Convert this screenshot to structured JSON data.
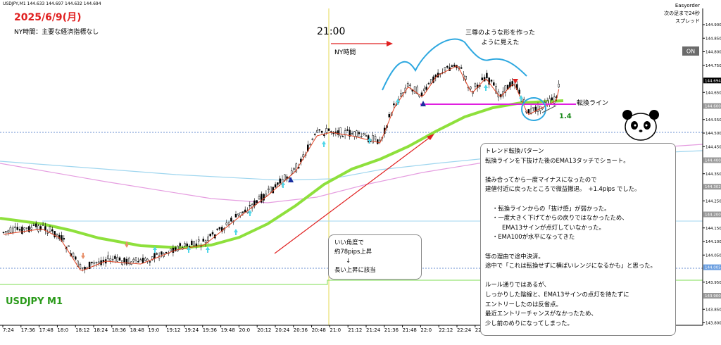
{
  "window_title": "USDJPY,M1  144.633 144.697 144.632 144.694",
  "header": {
    "date": "2025/6/9(月)",
    "note": "NY時間：主要な経済指標なし"
  },
  "time_marker": "21:00",
  "ny_label": "NY時間",
  "pattern_note": [
    "三尊のような形を作った",
    "ように見えた"
  ],
  "line_label": "転換ライン",
  "pips_label": "1.4",
  "top_right": [
    "Easyorder",
    "次の足まで24秒",
    "スプレッド"
  ],
  "on_button": "ON",
  "price_axis": {
    "labels": [
      "144.900",
      "144.850",
      "144.800",
      "144.750",
      "144.650",
      "144.550",
      "144.500",
      "144.450",
      "144.350",
      "144.250",
      "144.150",
      "144.100",
      "144.050",
      "143.950",
      "143.850",
      "143.800"
    ],
    "highlighted": [
      "144.694",
      "144.600",
      "144.400",
      "144.302",
      "144.200",
      "144.005",
      "143.900"
    ]
  },
  "time_axis": [
    "7:24",
    "17:36",
    "17:48",
    "18:0",
    "18:12",
    "18:24",
    "18:36",
    "18:48",
    "19:0",
    "19:12",
    "19:24",
    "19:36",
    "19:48",
    "20:0",
    "20:12",
    "20:24",
    "20:36",
    "20:48",
    "21:0",
    "21:12",
    "21:24",
    "21:36",
    "21:48",
    "22:0",
    "22:12",
    "22:24",
    "22:36"
  ],
  "bubble": [
    "いい角度で",
    "約78pips上昇",
    "↓",
    "長い上昇に該当"
  ],
  "box": [
    [
      "トレンド転換パターン",
      "転換ラインを下抜けた後のEMA13タッチでショート。"
    ],
    [
      "揉み合ってから一度マイナスになったので",
      "建値付近に戻ったところで微益撤退。　+1.4pips でした。"
    ],
    [
      "・転換ラインからの「抜け感」が弱かった。",
      "・一度大きく下げてからの戻りではなかったため、",
      "EMA13サインが点灯していなかった。",
      "・EMA100が水平になってきた"
    ],
    [
      "等の理由で途中決済。",
      "途中で「これは転換せずに横ばいレンジになるかも」と思った。"
    ],
    [
      "ルール通りではあるが、",
      "しっかりした陰線と、EMA13サインの点灯を待たずに",
      "エントリーしたのは反省点。",
      "最近エントリーチャンスがなかったため、",
      "少し前のめりになってしまった。"
    ]
  ],
  "symbol_label": "USDJPY M1"
}
